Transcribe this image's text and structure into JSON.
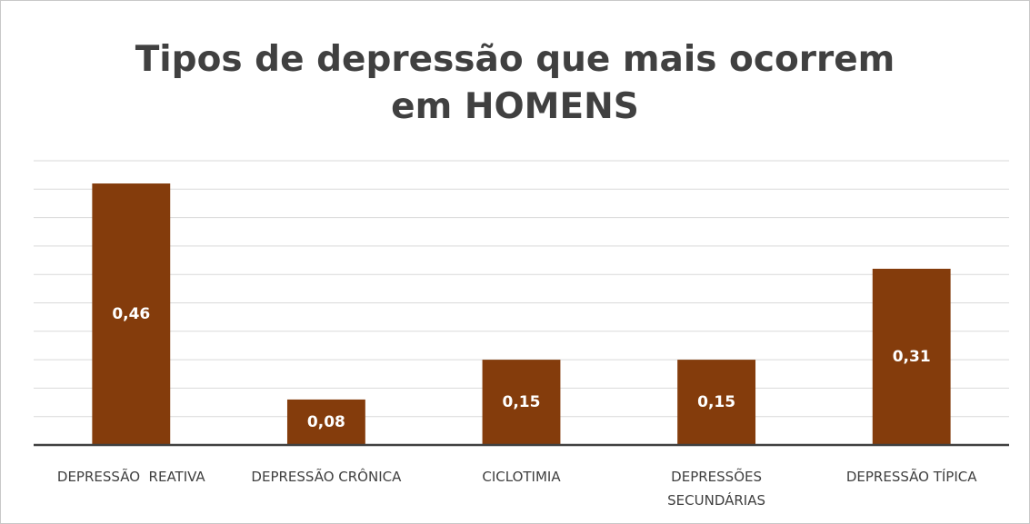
{
  "chart_data": {
    "type": "bar",
    "title": "Tipos de depressão que mais ocorrem em HOMENS",
    "categories": [
      "DEPRESSÃO  REATIVA",
      "DEPRESSÃO CRÔNICA",
      "CICLOTIMIA",
      "DEPRESSÕES SECUNDÁRIAS",
      "DEPRESSÃO TÍPICA"
    ],
    "values": [
      0.46,
      0.08,
      0.15,
      0.15,
      0.31
    ],
    "value_labels": [
      "0,46",
      "0,08",
      "0,15",
      "0,15",
      "0,31"
    ],
    "color": "#843c0c",
    "ylim": [
      0,
      0.5
    ],
    "yticks": [
      0,
      0.05,
      0.1,
      0.15,
      0.2,
      0.25,
      0.3,
      0.35,
      0.4,
      0.45,
      0.5
    ],
    "grid": true
  }
}
